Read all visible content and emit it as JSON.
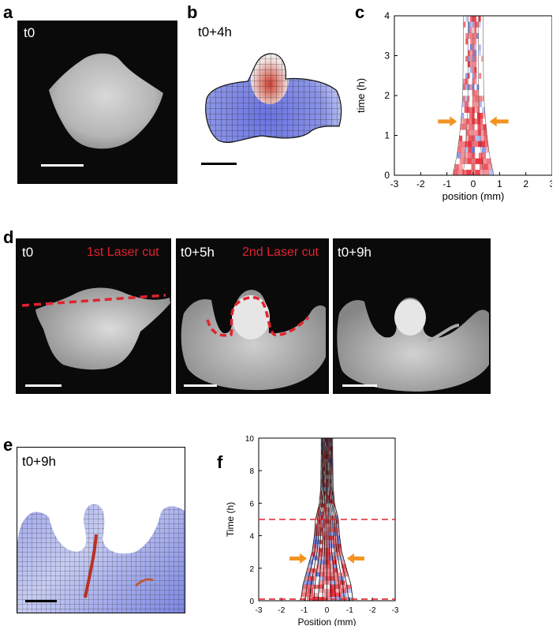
{
  "panels": {
    "a": {
      "letter": "a",
      "time_label": "t0"
    },
    "b": {
      "letter": "b",
      "time_label": "t0+4h"
    },
    "c": {
      "letter": "c"
    },
    "d": {
      "letter": "d",
      "sub": [
        {
          "time_label": "t0",
          "annotation": "1st Laser cut"
        },
        {
          "time_label": "t0+5h",
          "annotation": "2nd Laser cut"
        },
        {
          "time_label": "t0+9h",
          "annotation": ""
        }
      ]
    },
    "e": {
      "letter": "e",
      "time_label": "t0+9h"
    },
    "f": {
      "letter": "f"
    }
  },
  "chart_data": [
    {
      "id": "c",
      "type": "heatmap",
      "xlabel": "position (mm)",
      "ylabel": "time (h)",
      "xlim": [
        -3,
        3
      ],
      "ylim": [
        0,
        4
      ],
      "xticks": [
        "-3",
        "-2",
        "-1",
        "0",
        "1",
        "2",
        "3"
      ],
      "yticks": [
        "0",
        "1",
        "2",
        "3",
        "4"
      ],
      "band_half_width": [
        [
          0,
          0.78
        ],
        [
          0.5,
          0.62
        ],
        [
          1,
          0.52
        ],
        [
          1.5,
          0.45
        ],
        [
          2,
          0.4
        ],
        [
          3,
          0.38
        ],
        [
          4,
          0.37
        ]
      ],
      "arrow_time": 1.35,
      "colors": {
        "expansion": "#e8202c",
        "contraction": "#4a5fd8",
        "arrow": "#f29421"
      }
    },
    {
      "id": "f",
      "type": "heatmap",
      "xlabel": "Position (mm)",
      "ylabel": "Time (h)",
      "xlim": [
        -3,
        3
      ],
      "ylim": [
        0,
        10
      ],
      "xticks": [
        "-3",
        "-2",
        "-1",
        "0",
        "-1",
        "-2",
        "-3"
      ],
      "yticks": [
        "0",
        "2",
        "4",
        "6",
        "8",
        "10"
      ],
      "band_half_width": [
        [
          0,
          1.15
        ],
        [
          1,
          1.05
        ],
        [
          2,
          0.85
        ],
        [
          3,
          0.65
        ],
        [
          4,
          0.55
        ],
        [
          5,
          0.5
        ],
        [
          6,
          0.33
        ],
        [
          7,
          0.27
        ],
        [
          9,
          0.25
        ]
      ],
      "laser_cut_times": [
        0.1,
        5
      ],
      "arrow_time": 2.6,
      "colors": {
        "expansion": "#e8202c",
        "contraction": "#4a5fd8",
        "cut_line": "#e0242e",
        "arrow": "#f29421"
      }
    }
  ]
}
